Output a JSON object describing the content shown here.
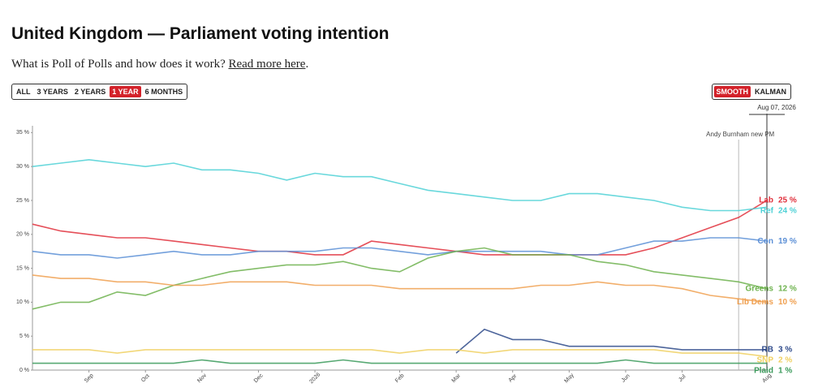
{
  "header": {
    "title": "United Kingdom — Parliament voting intention",
    "subtitle": "What is Poll of Polls and how does it work?",
    "link": "Read more here",
    "subtitle_tail": "."
  },
  "range_buttons": [
    {
      "label": "ALL",
      "active": false
    },
    {
      "label": "3 YEARS",
      "active": false
    },
    {
      "label": "2 YEARS",
      "active": false
    },
    {
      "label": "1 YEAR",
      "active": true
    },
    {
      "label": "6 MONTHS",
      "active": false
    }
  ],
  "mode_buttons": [
    {
      "label": "SMOOTH",
      "active": true
    },
    {
      "label": "KALMAN",
      "active": false
    }
  ],
  "chart_data": {
    "type": "line",
    "date_marker": "Aug 07, 2026",
    "annotation": "Andy Burnham new PM",
    "categories": [
      null,
      null,
      "Sep",
      null,
      "Oct",
      null,
      "Nov",
      null,
      "Dec",
      null,
      "2026",
      null,
      null,
      "Feb",
      null,
      "Mar",
      null,
      "Apr",
      null,
      "May",
      null,
      "Jun",
      null,
      "Jul",
      null,
      null,
      "Aug"
    ],
    "ylim": [
      0,
      36
    ],
    "yticks": [
      {
        "value": 0,
        "label": "0 %"
      },
      {
        "value": 5,
        "label": "5 %"
      },
      {
        "value": 10,
        "label": "10 %"
      },
      {
        "value": 15,
        "label": "15 %"
      },
      {
        "value": 20,
        "label": "20 %"
      },
      {
        "value": 25,
        "label": "25 %"
      },
      {
        "value": 30,
        "label": "30 %"
      },
      {
        "value": 35,
        "label": "35 %"
      }
    ],
    "grid": false,
    "series": [
      {
        "name": "Lab",
        "color": "#e0303c",
        "values": [
          21.5,
          20.5,
          20,
          19.5,
          19.5,
          19,
          18.5,
          18,
          17.5,
          17.5,
          17,
          17,
          19,
          18.5,
          18,
          17.5,
          17,
          17,
          17,
          17,
          17,
          17,
          18,
          19.5,
          21,
          22.5,
          25
        ],
        "value_labels": [
          null,
          null,
          null,
          null,
          null,
          null,
          null,
          null,
          null,
          null,
          null,
          null,
          null,
          null,
          null,
          null,
          null,
          null,
          null,
          null,
          null,
          null,
          null,
          null,
          null,
          null,
          "25 %"
        ]
      },
      {
        "name": "Ref",
        "color": "#4fd1d6",
        "values": [
          30,
          30.5,
          31,
          30.5,
          30,
          30.5,
          29.5,
          29.5,
          29,
          28,
          29,
          28.5,
          28.5,
          27.5,
          26.5,
          26,
          25.5,
          25,
          25,
          26,
          26,
          25.5,
          25,
          24,
          23.5,
          23.5,
          24
        ],
        "value_labels": [
          null,
          null,
          null,
          null,
          null,
          null,
          null,
          null,
          null,
          null,
          null,
          null,
          null,
          null,
          null,
          null,
          null,
          null,
          null,
          null,
          null,
          null,
          null,
          null,
          null,
          null,
          "24 %"
        ]
      },
      {
        "name": "Con",
        "color": "#5b8fd6",
        "values": [
          17.5,
          17,
          17,
          16.5,
          17,
          17.5,
          17,
          17,
          17.5,
          17.5,
          17.5,
          18,
          18,
          17.5,
          17,
          17.5,
          17.5,
          17.5,
          17.5,
          17,
          17,
          18,
          19,
          19,
          19.5,
          19.5,
          19
        ],
        "value_labels": [
          null,
          null,
          null,
          null,
          null,
          null,
          null,
          null,
          null,
          null,
          null,
          null,
          null,
          null,
          null,
          null,
          null,
          null,
          null,
          null,
          null,
          null,
          null,
          null,
          null,
          null,
          "19 %"
        ]
      },
      {
        "name": "Greens",
        "color": "#6db24d",
        "values": [
          9,
          10,
          10,
          11.5,
          11,
          12.5,
          13.5,
          14.5,
          15,
          15.5,
          15.5,
          16,
          15,
          14.5,
          16.5,
          17.5,
          18,
          17,
          17,
          17,
          16,
          15.5,
          14.5,
          14,
          13.5,
          13,
          12
        ],
        "value_labels": [
          null,
          null,
          null,
          null,
          null,
          null,
          null,
          null,
          null,
          null,
          null,
          null,
          null,
          null,
          null,
          null,
          null,
          null,
          null,
          null,
          null,
          null,
          null,
          null,
          null,
          null,
          "12 %"
        ]
      },
      {
        "name": "Lib Dems",
        "color": "#f0a050",
        "values": [
          14,
          13.5,
          13.5,
          13,
          13,
          12.5,
          12.5,
          13,
          13,
          13,
          12.5,
          12.5,
          12.5,
          12,
          12,
          12,
          12,
          12,
          12.5,
          12.5,
          13,
          12.5,
          12.5,
          12,
          11,
          10.5,
          10
        ],
        "value_labels": [
          null,
          null,
          null,
          null,
          null,
          null,
          null,
          null,
          null,
          null,
          null,
          null,
          null,
          null,
          null,
          null,
          null,
          null,
          null,
          null,
          null,
          null,
          null,
          null,
          null,
          null,
          "10 %"
        ]
      },
      {
        "name": "RB",
        "color": "#2e4a8a",
        "values": [
          null,
          null,
          null,
          null,
          null,
          null,
          null,
          null,
          null,
          null,
          null,
          null,
          null,
          null,
          null,
          2.5,
          6,
          4.5,
          4.5,
          3.5,
          3.5,
          3.5,
          3.5,
          3,
          3,
          3,
          3
        ],
        "value_labels": [
          null,
          null,
          null,
          null,
          null,
          null,
          null,
          null,
          null,
          null,
          null,
          null,
          null,
          null,
          null,
          null,
          null,
          null,
          null,
          null,
          null,
          null,
          null,
          null,
          null,
          null,
          "3 %"
        ]
      },
      {
        "name": "SNP",
        "color": "#f0d060",
        "values": [
          3,
          3,
          3,
          2.5,
          3,
          3,
          3,
          3,
          3,
          3,
          3,
          3,
          3,
          2.5,
          3,
          3,
          2.5,
          3,
          3,
          3,
          3,
          3,
          3,
          2.5,
          2.5,
          2.5,
          2
        ],
        "value_labels": [
          null,
          null,
          null,
          null,
          null,
          null,
          null,
          null,
          null,
          null,
          null,
          null,
          null,
          null,
          null,
          null,
          null,
          null,
          null,
          null,
          null,
          null,
          null,
          null,
          null,
          null,
          "2 %"
        ]
      },
      {
        "name": "Plaid",
        "color": "#3a9a5a",
        "values": [
          1,
          1,
          1,
          1,
          1,
          1,
          1.5,
          1,
          1,
          1,
          1,
          1.5,
          1,
          1,
          1,
          1,
          1,
          1,
          1,
          1,
          1,
          1.5,
          1,
          1,
          1,
          1,
          1
        ],
        "value_labels": [
          null,
          null,
          null,
          null,
          null,
          null,
          null,
          null,
          null,
          null,
          null,
          null,
          null,
          null,
          null,
          null,
          null,
          null,
          null,
          null,
          null,
          null,
          null,
          null,
          null,
          null,
          "1 %"
        ]
      }
    ]
  }
}
